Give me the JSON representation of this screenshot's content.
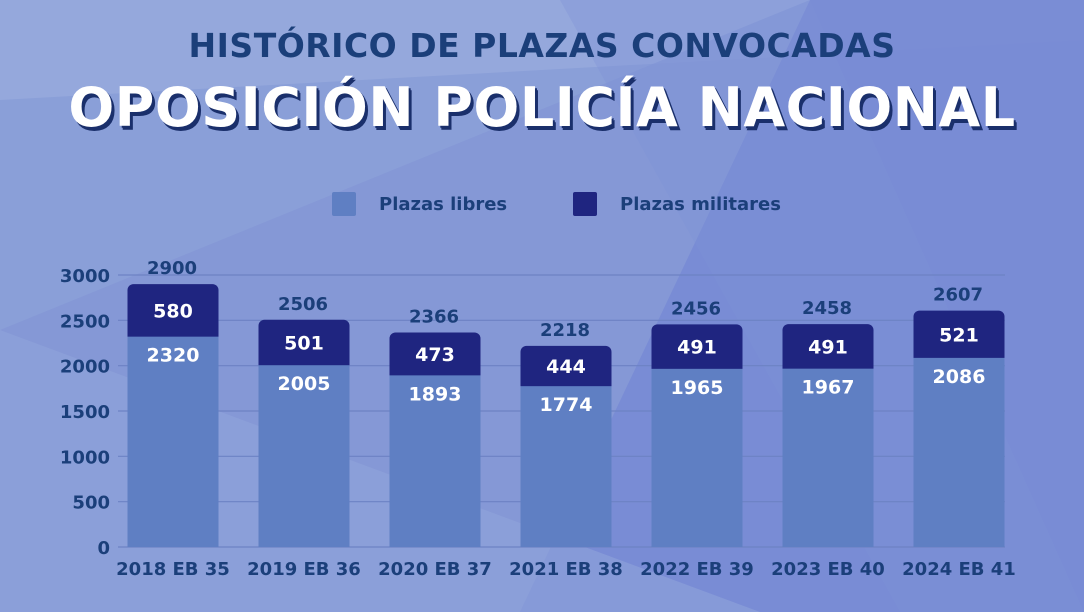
{
  "header": {
    "subtitle": "HISTÓRICO DE PLAZAS CONVOCADAS",
    "title": "OPOSICIÓN POLICÍA NACIONAL"
  },
  "colors": {
    "background": "#8a9fd8",
    "libres": "#5f7fc3",
    "militares": "#1f2580",
    "text_dark": "#1b3f7a",
    "title_shadow": "#1a2f6b"
  },
  "chart_data": {
    "type": "bar",
    "stacked": true,
    "categories": [
      "2018 EB 35",
      "2019 EB 36",
      "2020 EB 37",
      "2021 EB 38",
      "2022 EB 39",
      "2023 EB 40",
      "2024 EB 41"
    ],
    "series": [
      {
        "name": "Plazas libres",
        "color": "#5f7fc3",
        "values": [
          2320,
          2005,
          1893,
          1774,
          1965,
          1967,
          2086
        ]
      },
      {
        "name": "Plazas militares",
        "color": "#1f2580",
        "values": [
          580,
          501,
          473,
          444,
          491,
          491,
          521
        ]
      }
    ],
    "totals": [
      2900,
      2506,
      2366,
      2218,
      2456,
      2458,
      2607
    ],
    "yticks": [
      0,
      500,
      1000,
      1500,
      2000,
      2500,
      3000
    ],
    "ylim": [
      0,
      3000
    ],
    "grid": true,
    "legend": "top-center"
  }
}
